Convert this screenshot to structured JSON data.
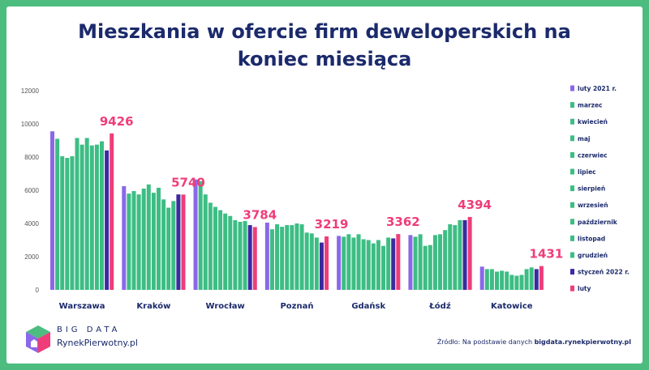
{
  "title": "Mieszkania w ofercie firm deweloperskich na koniec miesiąca",
  "logo": {
    "line1": "BIG DATA",
    "line2": "RynekPierwotny.pl"
  },
  "source": {
    "prefix": "Źródło: Na podstawie danych ",
    "site": "bigdata.rynekpierwotny.pl"
  },
  "colors": {
    "background": "#4cbd7f",
    "first": "#8a68e8",
    "middle": "#3dbd84",
    "previous": "#3b2aa0",
    "last": "#ef3d79",
    "text": "#1b2a6b"
  },
  "chart_data": {
    "type": "bar",
    "ylim": [
      0,
      12000
    ],
    "yticks": [
      0,
      2000,
      4000,
      6000,
      8000,
      10000,
      12000
    ],
    "grid": false,
    "legend_position": "right",
    "categories": [
      "Warszawa",
      "Kraków",
      "Wrocław",
      "Poznań",
      "Gdańsk",
      "Łódź",
      "Katowice"
    ],
    "series": [
      {
        "name": "luty 2021 r.",
        "values": [
          9550,
          6250,
          6650,
          4050,
          3250,
          3300,
          1400
        ]
      },
      {
        "name": "marzec",
        "values": [
          9100,
          5800,
          6550,
          3650,
          3200,
          3200,
          1250
        ]
      },
      {
        "name": "kwiecień",
        "values": [
          8050,
          5950,
          5750,
          3950,
          3350,
          3350,
          1250
        ]
      },
      {
        "name": "maj",
        "values": [
          7950,
          5750,
          5250,
          3800,
          3150,
          2650,
          1100
        ]
      },
      {
        "name": "czerwiec",
        "values": [
          8050,
          6100,
          5000,
          3900,
          3350,
          2700,
          1150
        ]
      },
      {
        "name": "lipiec",
        "values": [
          9150,
          6350,
          4800,
          3900,
          3050,
          3300,
          1100
        ]
      },
      {
        "name": "sierpień",
        "values": [
          8750,
          5850,
          4600,
          4000,
          3000,
          3350,
          900
        ]
      },
      {
        "name": "wrzesień",
        "values": [
          9150,
          6150,
          4450,
          3950,
          2800,
          3600,
          850
        ]
      },
      {
        "name": "październik",
        "values": [
          8700,
          5450,
          4200,
          3450,
          3000,
          3950,
          900
        ]
      },
      {
        "name": "listopad",
        "values": [
          8750,
          4950,
          4100,
          3400,
          2650,
          3900,
          1250
        ]
      },
      {
        "name": "grudzień",
        "values": [
          8950,
          5350,
          4150,
          3150,
          3150,
          4200,
          1350
        ]
      },
      {
        "name": "styczeń 2022 r.",
        "values": [
          8400,
          5750,
          3900,
          2850,
          3100,
          4200,
          1250
        ]
      },
      {
        "name": "luty",
        "values": [
          9426,
          5740,
          3784,
          3219,
          3362,
          4394,
          1431
        ]
      }
    ],
    "data_labels": [
      "9426",
      "5740",
      "3784",
      "3219",
      "3362",
      "4394",
      "1431"
    ]
  }
}
